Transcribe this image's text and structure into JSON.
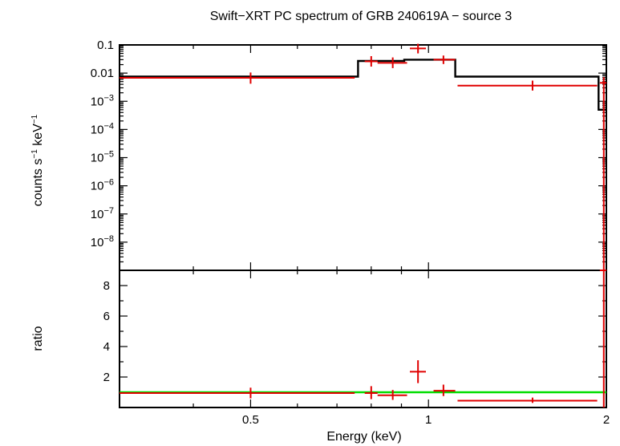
{
  "chart_data": {
    "type": "scatter",
    "title": "Swift−XRT PC spectrum of GRB 240619A − source 3",
    "xlabel": "Energy (keV)",
    "x_scale": "log",
    "xlim": [
      0.3,
      2.0
    ],
    "x_ticks": [
      {
        "value": 0.5,
        "label": "0.5"
      },
      {
        "value": 1,
        "label": "1"
      },
      {
        "value": 2,
        "label": "2"
      }
    ],
    "panels": [
      {
        "name": "spectrum",
        "ylabel_text": "counts s",
        "ylabel_sup1": "−1",
        "ylabel_mid": " keV",
        "ylabel_sup2": "−1",
        "y_scale": "log",
        "ylim": [
          1e-09,
          0.1
        ],
        "y_ticks": [
          {
            "value": 0.1,
            "base": "0.1",
            "exp": ""
          },
          {
            "value": 0.01,
            "base": "0.01",
            "exp": ""
          },
          {
            "value": 0.001,
            "base": "10",
            "exp": "−3"
          },
          {
            "value": 0.0001,
            "base": "10",
            "exp": "−4"
          },
          {
            "value": 1e-05,
            "base": "10",
            "exp": "−5"
          },
          {
            "value": 1e-06,
            "base": "10",
            "exp": "−6"
          },
          {
            "value": 1e-07,
            "base": "10",
            "exp": "−7"
          },
          {
            "value": 1e-08,
            "base": "10",
            "exp": "−8"
          }
        ],
        "data": [
          {
            "x": 0.5,
            "xlo": 0.3,
            "xhi": 0.75,
            "y": 0.0068,
            "ylo": 0.0042,
            "yhi": 0.0105
          },
          {
            "x": 0.8,
            "xlo": 0.78,
            "xhi": 0.82,
            "y": 0.026,
            "ylo": 0.017,
            "yhi": 0.04
          },
          {
            "x": 0.87,
            "xlo": 0.82,
            "xhi": 0.92,
            "y": 0.023,
            "ylo": 0.015,
            "yhi": 0.036
          },
          {
            "x": 0.96,
            "xlo": 0.93,
            "xhi": 0.99,
            "y": 0.075,
            "ylo": 0.05,
            "yhi": 0.11
          },
          {
            "x": 1.06,
            "xlo": 1.02,
            "xhi": 1.11,
            "y": 0.03,
            "ylo": 0.021,
            "yhi": 0.042
          },
          {
            "x": 1.5,
            "xlo": 1.12,
            "xhi": 1.93,
            "y": 0.0036,
            "ylo": 0.0024,
            "yhi": 0.0054
          },
          {
            "x": 1.98,
            "xlo": 1.95,
            "xhi": 2.0,
            "y": 0.0045,
            "ylo": 1e-09,
            "yhi": 0.0072
          }
        ],
        "model_steps": [
          {
            "x0": 0.3,
            "x1": 0.76,
            "y": 0.0075
          },
          {
            "x0": 0.76,
            "x1": 0.91,
            "y": 0.027
          },
          {
            "x0": 0.91,
            "x1": 1.11,
            "y": 0.03
          },
          {
            "x0": 1.11,
            "x1": 1.94,
            "y": 0.0075
          },
          {
            "x0": 1.94,
            "x1": 2.0,
            "y": 0.0005
          }
        ]
      },
      {
        "name": "ratio",
        "ylabel_text": "ratio",
        "y_scale": "linear",
        "ylim": [
          0,
          9
        ],
        "y_ticks": [
          {
            "value": 2,
            "label": "2"
          },
          {
            "value": 4,
            "label": "4"
          },
          {
            "value": 6,
            "label": "6"
          },
          {
            "value": 8,
            "label": "8"
          }
        ],
        "unity_line": 1.0,
        "data": [
          {
            "x": 0.5,
            "xlo": 0.3,
            "xhi": 0.75,
            "y": 0.95,
            "ylo": 0.6,
            "yhi": 1.3
          },
          {
            "x": 0.8,
            "xlo": 0.78,
            "xhi": 0.82,
            "y": 0.95,
            "ylo": 0.55,
            "yhi": 1.4
          },
          {
            "x": 0.87,
            "xlo": 0.82,
            "xhi": 0.92,
            "y": 0.8,
            "ylo": 0.5,
            "yhi": 1.15
          },
          {
            "x": 0.96,
            "xlo": 0.93,
            "xhi": 0.99,
            "y": 2.35,
            "ylo": 1.6,
            "yhi": 3.1
          },
          {
            "x": 1.06,
            "xlo": 1.02,
            "xhi": 1.11,
            "y": 1.1,
            "ylo": 0.75,
            "yhi": 1.5
          },
          {
            "x": 1.5,
            "xlo": 1.12,
            "xhi": 1.93,
            "y": 0.45,
            "ylo": 0.3,
            "yhi": 0.65
          },
          {
            "x": 1.98,
            "xlo": 1.95,
            "xhi": 2.0,
            "y": 9.0,
            "ylo": 0,
            "yhi": 9.0
          }
        ]
      }
    ],
    "colors": {
      "data": "#e00000",
      "model": "#000000",
      "unity": "#00dd00"
    }
  }
}
